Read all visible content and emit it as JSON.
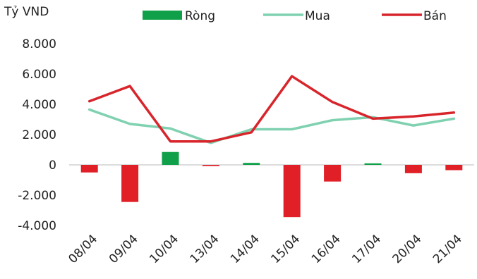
{
  "chart_data": {
    "type": "bar+line",
    "unit_label": "Tỷ VND",
    "categories": [
      "08/04",
      "09/04",
      "10/04",
      "13/04",
      "14/04",
      "15/04",
      "16/04",
      "17/04",
      "20/04",
      "21/04"
    ],
    "ylim": [
      -4000,
      8000
    ],
    "yticks": [
      8000,
      6000,
      4000,
      2000,
      0,
      -2000,
      -4000
    ],
    "ytick_labels": [
      "8.000",
      "6.000",
      "4.000",
      "2.000",
      "0",
      "-2.000",
      "-4.000"
    ],
    "grid": false,
    "legend_position": "top",
    "series": [
      {
        "name": "Ròng",
        "kind": "bar",
        "values": [
          -500,
          -2450,
          850,
          -80,
          130,
          -3450,
          -1100,
          100,
          -550,
          -350
        ],
        "color_positive": "#10a04a",
        "color_negative": "#e01f26"
      },
      {
        "name": "Mua",
        "kind": "line",
        "values": [
          3650,
          2700,
          2400,
          1450,
          2350,
          2350,
          2950,
          3150,
          2600,
          3050
        ],
        "color": "#7fd1b0"
      },
      {
        "name": "Bán",
        "kind": "line",
        "values": [
          4200,
          5200,
          1550,
          1550,
          2150,
          5850,
          4150,
          3050,
          3200,
          3450
        ],
        "color": "#d8252c"
      }
    ]
  }
}
